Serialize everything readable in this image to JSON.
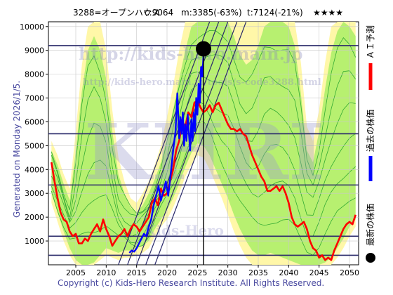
{
  "header": {
    "code": "3288=オープンハウス",
    "close": "c:9064",
    "min": "m:3385(-63%)",
    "target": "t:7124(-21%)",
    "stars": "★★★★"
  },
  "side_label": "Generated on Monday 2026/1/5.",
  "copyright": "Copyright (c) Kids-Hero Research Institute. All Rights Reserved.",
  "watermark": {
    "url1": "http://kids-hero.main.jp",
    "url2": "http://kids-hero.main.jp/tools/s-code3288.html",
    "logo": "KHRI",
    "sub": "Kids-Hero"
  },
  "legend": [
    {
      "label": "ＡＩ予測",
      "color": "#ff0000",
      "kind": "line"
    },
    {
      "label": "過去の株価",
      "color": "#0000ff",
      "kind": "line"
    },
    {
      "label": "最新の株価",
      "color": "#000000",
      "kind": "dot"
    }
  ],
  "colors": {
    "ai_forecast": "#ff0000",
    "past_price": "#0000ff",
    "band_outer": "#fff7a8",
    "band_inner": "#aaee66",
    "band_lines": "#33aa33",
    "hlines": "#2a2a6a",
    "trend_lines": "#2a2a6a",
    "gridline": "#c8c8c8"
  },
  "chart_data": {
    "type": "line",
    "x_ticks": [
      2005,
      2010,
      2015,
      2020,
      2025,
      2030,
      2035,
      2040,
      2045,
      2050
    ],
    "y_ticks": [
      1000,
      2000,
      3000,
      4000,
      5000,
      6000,
      7000,
      8000,
      9000,
      10000
    ],
    "xlim": [
      2000.5,
      2051.5
    ],
    "ylim": [
      0,
      10200
    ],
    "grid": true,
    "legend_position": "right",
    "latest_price": {
      "x": 2026.0,
      "y": 9064
    },
    "vertical_marker_x": 2026.0,
    "horizontal_levels": [
      400,
      1200,
      3350,
      5500,
      9200
    ],
    "trend_lines": [
      {
        "from": [
          2013.5,
          0
        ],
        "to": [
          2028.5,
          10200
        ]
      },
      {
        "from": [
          2015.0,
          0
        ],
        "to": [
          2030.0,
          10200
        ]
      },
      {
        "from": [
          2016.5,
          0
        ],
        "to": [
          2031.5,
          10200
        ]
      },
      {
        "from": [
          2018.0,
          0
        ],
        "to": [
          2033.0,
          10200
        ]
      },
      {
        "from": [
          2012.0,
          0
        ],
        "to": [
          2027.0,
          10200
        ]
      }
    ],
    "series": [
      {
        "name": "ＡＩ予測",
        "x": [
          2001.0,
          2001.5,
          2002.0,
          2002.5,
          2003.0,
          2003.5,
          2004.0,
          2004.5,
          2005.0,
          2005.5,
          2006.0,
          2006.5,
          2007.0,
          2007.5,
          2008.0,
          2008.5,
          2009.0,
          2009.5,
          2010.0,
          2010.5,
          2011.0,
          2011.5,
          2012.0,
          2012.5,
          2013.0,
          2013.5,
          2014.0,
          2014.5,
          2015.0,
          2015.5,
          2016.0,
          2016.5,
          2017.0,
          2017.5,
          2018.0,
          2018.5,
          2019.0,
          2019.5,
          2020.0,
          2020.5,
          2021.0,
          2021.5,
          2022.0,
          2022.5,
          2023.0,
          2023.5,
          2024.0,
          2024.5,
          2025.0,
          2025.5,
          2026.0,
          2026.5,
          2027.0,
          2027.5,
          2028.0,
          2028.5,
          2029.0,
          2029.5,
          2030.0,
          2030.5,
          2031.0,
          2031.5,
          2032.0,
          2032.5,
          2033.0,
          2033.5,
          2034.0,
          2034.5,
          2035.0,
          2035.5,
          2036.0,
          2036.5,
          2037.0,
          2037.5,
          2038.0,
          2038.5,
          2039.0,
          2039.5,
          2040.0,
          2040.5,
          2041.0,
          2041.5,
          2042.0,
          2042.5,
          2043.0,
          2043.5,
          2044.0,
          2044.5,
          2045.0,
          2045.5,
          2046.0,
          2046.5,
          2047.0,
          2047.5,
          2048.0,
          2048.5,
          2049.0,
          2049.5,
          2050.0,
          2050.5,
          2051.0
        ],
        "y": [
          4300,
          3500,
          2800,
          2200,
          1900,
          1800,
          1400,
          1200,
          1300,
          900,
          900,
          1100,
          1000,
          1300,
          1500,
          1700,
          1400,
          1900,
          1500,
          1200,
          800,
          1000,
          1200,
          1300,
          1500,
          1200,
          1500,
          1700,
          1600,
          1400,
          1600,
          1800,
          2000,
          2600,
          2800,
          2500,
          3200,
          2900,
          3000,
          3500,
          4000,
          4800,
          5200,
          6000,
          5800,
          6400,
          6200,
          6800,
          6900,
          6600,
          6400,
          6500,
          6700,
          6400,
          6700,
          6800,
          6500,
          6200,
          5900,
          5700,
          5700,
          5600,
          5700,
          5500,
          5400,
          5000,
          4600,
          4300,
          4000,
          3700,
          3500,
          3100,
          3100,
          3200,
          3300,
          3100,
          3300,
          3000,
          2600,
          2000,
          1700,
          1600,
          1700,
          1800,
          1500,
          1000,
          700,
          600,
          300,
          400,
          200,
          300,
          200,
          600,
          900,
          1200,
          1500,
          1700,
          1800,
          1700,
          2100
        ]
      },
      {
        "name": "過去の株価",
        "x": [
          2013.8,
          2014.2,
          2014.6,
          2015.0,
          2015.4,
          2015.8,
          2016.2,
          2016.6,
          2017.0,
          2017.4,
          2017.8,
          2018.2,
          2018.6,
          2019.0,
          2019.4,
          2019.8,
          2020.2,
          2020.6,
          2021.0,
          2021.4,
          2021.7,
          2022.0,
          2022.2,
          2022.4,
          2022.6,
          2022.8,
          2023.0,
          2023.2,
          2023.4,
          2023.6,
          2023.8,
          2024.0,
          2024.2,
          2024.4,
          2024.6,
          2024.8,
          2025.0,
          2025.2,
          2025.4,
          2025.6,
          2025.8,
          2026.0
        ],
        "y": [
          500,
          600,
          550,
          700,
          900,
          1100,
          1300,
          1200,
          1600,
          1900,
          2500,
          2900,
          3300,
          2700,
          3100,
          3500,
          2900,
          3800,
          4800,
          5600,
          7200,
          5300,
          6200,
          5500,
          6400,
          5000,
          5900,
          5200,
          6300,
          5500,
          4800,
          6100,
          5200,
          6400,
          5600,
          7000,
          6300,
          7600,
          6800,
          8300,
          7900,
          8800
        ]
      }
    ],
    "bands": {
      "outer_upper": [
        [
          2001,
          5200
        ],
        [
          2002,
          4600
        ],
        [
          2003,
          3800
        ],
        [
          2004,
          3200
        ],
        [
          2005,
          5600
        ],
        [
          2006,
          8400
        ],
        [
          2007,
          10000
        ],
        [
          2008,
          10200
        ],
        [
          2009,
          10200
        ],
        [
          2010,
          9000
        ],
        [
          2011,
          6500
        ],
        [
          2012,
          4500
        ],
        [
          2013,
          3500
        ],
        [
          2014,
          2800
        ],
        [
          2015,
          2600
        ],
        [
          2016,
          3000
        ],
        [
          2017,
          3500
        ],
        [
          2018,
          4200
        ],
        [
          2019,
          5000
        ],
        [
          2020,
          6200
        ],
        [
          2021,
          7500
        ],
        [
          2022,
          9000
        ],
        [
          2023,
          10200
        ],
        [
          2024,
          10200
        ],
        [
          2025,
          10200
        ],
        [
          2026,
          10200
        ],
        [
          2027,
          10200
        ],
        [
          2028,
          10200
        ],
        [
          2029,
          10200
        ],
        [
          2030,
          10200
        ],
        [
          2031,
          10200
        ],
        [
          2032,
          10200
        ],
        [
          2033,
          10200
        ],
        [
          2034,
          10200
        ],
        [
          2035,
          10200
        ],
        [
          2036,
          10200
        ],
        [
          2037,
          10200
        ],
        [
          2038,
          10200
        ],
        [
          2039,
          10200
        ],
        [
          2040,
          10200
        ],
        [
          2041,
          10200
        ],
        [
          2042,
          8500
        ],
        [
          2043,
          5800
        ],
        [
          2044,
          5200
        ],
        [
          2045,
          6500
        ],
        [
          2046,
          8500
        ],
        [
          2047,
          10000
        ],
        [
          2048,
          10200
        ],
        [
          2049,
          10200
        ],
        [
          2050,
          10200
        ],
        [
          2051,
          10200
        ]
      ],
      "outer_lower": [
        [
          2001,
          2600
        ],
        [
          2002,
          1800
        ],
        [
          2003,
          1000
        ],
        [
          2004,
          400
        ],
        [
          2005,
          0
        ],
        [
          2006,
          0
        ],
        [
          2007,
          0
        ],
        [
          2008,
          0
        ],
        [
          2009,
          200
        ],
        [
          2010,
          400
        ],
        [
          2011,
          300
        ],
        [
          2012,
          200
        ],
        [
          2013,
          300
        ],
        [
          2014,
          300
        ],
        [
          2015,
          400
        ],
        [
          2016,
          500
        ],
        [
          2017,
          700
        ],
        [
          2018,
          1200
        ],
        [
          2019,
          1600
        ],
        [
          2020,
          1900
        ],
        [
          2021,
          2400
        ],
        [
          2022,
          3000
        ],
        [
          2023,
          3700
        ],
        [
          2024,
          4200
        ],
        [
          2025,
          4600
        ],
        [
          2026,
          4500
        ],
        [
          2027,
          4000
        ],
        [
          2028,
          3400
        ],
        [
          2029,
          2800
        ],
        [
          2030,
          2100
        ],
        [
          2031,
          1400
        ],
        [
          2032,
          800
        ],
        [
          2033,
          300
        ],
        [
          2034,
          0
        ],
        [
          2035,
          0
        ],
        [
          2036,
          0
        ],
        [
          2037,
          0
        ],
        [
          2038,
          0
        ],
        [
          2039,
          0
        ],
        [
          2040,
          0
        ],
        [
          2041,
          0
        ],
        [
          2042,
          0
        ],
        [
          2043,
          0
        ],
        [
          2044,
          0
        ],
        [
          2045,
          0
        ],
        [
          2046,
          0
        ],
        [
          2047,
          0
        ],
        [
          2048,
          300
        ],
        [
          2049,
          700
        ],
        [
          2050,
          1200
        ],
        [
          2051,
          1600
        ]
      ],
      "inner_upper": [
        [
          2001,
          4800
        ],
        [
          2002,
          4200
        ],
        [
          2003,
          3400
        ],
        [
          2004,
          2700
        ],
        [
          2005,
          4800
        ],
        [
          2006,
          7300
        ],
        [
          2007,
          9000
        ],
        [
          2008,
          9600
        ],
        [
          2009,
          9000
        ],
        [
          2010,
          7800
        ],
        [
          2011,
          5600
        ],
        [
          2012,
          3800
        ],
        [
          2013,
          3000
        ],
        [
          2014,
          2400
        ],
        [
          2015,
          2200
        ],
        [
          2016,
          2500
        ],
        [
          2017,
          3000
        ],
        [
          2018,
          3600
        ],
        [
          2019,
          4300
        ],
        [
          2020,
          5300
        ],
        [
          2021,
          6500
        ],
        [
          2022,
          7800
        ],
        [
          2023,
          9000
        ],
        [
          2024,
          10000
        ],
        [
          2025,
          10200
        ],
        [
          2026,
          10200
        ],
        [
          2027,
          10200
        ],
        [
          2028,
          10200
        ],
        [
          2029,
          10200
        ],
        [
          2030,
          10200
        ],
        [
          2031,
          9600
        ],
        [
          2032,
          8800
        ],
        [
          2033,
          8400
        ],
        [
          2034,
          8600
        ],
        [
          2035,
          9200
        ],
        [
          2036,
          10000
        ],
        [
          2037,
          10200
        ],
        [
          2038,
          10200
        ],
        [
          2039,
          10200
        ],
        [
          2040,
          10000
        ],
        [
          2041,
          9200
        ],
        [
          2042,
          7200
        ],
        [
          2043,
          4800
        ],
        [
          2044,
          4300
        ],
        [
          2045,
          5600
        ],
        [
          2046,
          7400
        ],
        [
          2047,
          8900
        ],
        [
          2048,
          9800
        ],
        [
          2049,
          10200
        ],
        [
          2050,
          10000
        ],
        [
          2051,
          9600
        ]
      ],
      "inner_lower": [
        [
          2001,
          3000
        ],
        [
          2002,
          2200
        ],
        [
          2003,
          1400
        ],
        [
          2004,
          700
        ],
        [
          2005,
          200
        ],
        [
          2006,
          0
        ],
        [
          2007,
          0
        ],
        [
          2008,
          100
        ],
        [
          2009,
          400
        ],
        [
          2010,
          700
        ],
        [
          2011,
          600
        ],
        [
          2012,
          500
        ],
        [
          2013,
          600
        ],
        [
          2014,
          600
        ],
        [
          2015,
          700
        ],
        [
          2016,
          800
        ],
        [
          2017,
          1000
        ],
        [
          2018,
          1500
        ],
        [
          2019,
          1900
        ],
        [
          2020,
          2300
        ],
        [
          2021,
          2800
        ],
        [
          2022,
          3400
        ],
        [
          2023,
          4100
        ],
        [
          2024,
          4700
        ],
        [
          2025,
          5100
        ],
        [
          2026,
          5000
        ],
        [
          2027,
          4600
        ],
        [
          2028,
          4000
        ],
        [
          2029,
          3400
        ],
        [
          2030,
          2800
        ],
        [
          2031,
          2100
        ],
        [
          2032,
          1500
        ],
        [
          2033,
          1000
        ],
        [
          2034,
          600
        ],
        [
          2035,
          400
        ],
        [
          2036,
          400
        ],
        [
          2037,
          500
        ],
        [
          2038,
          400
        ],
        [
          2039,
          300
        ],
        [
          2040,
          200
        ],
        [
          2041,
          100
        ],
        [
          2042,
          0
        ],
        [
          2043,
          0
        ],
        [
          2044,
          0
        ],
        [
          2045,
          0
        ],
        [
          2046,
          100
        ],
        [
          2047,
          300
        ],
        [
          2048,
          700
        ],
        [
          2049,
          1100
        ],
        [
          2050,
          1600
        ],
        [
          2051,
          1900
        ]
      ]
    }
  }
}
